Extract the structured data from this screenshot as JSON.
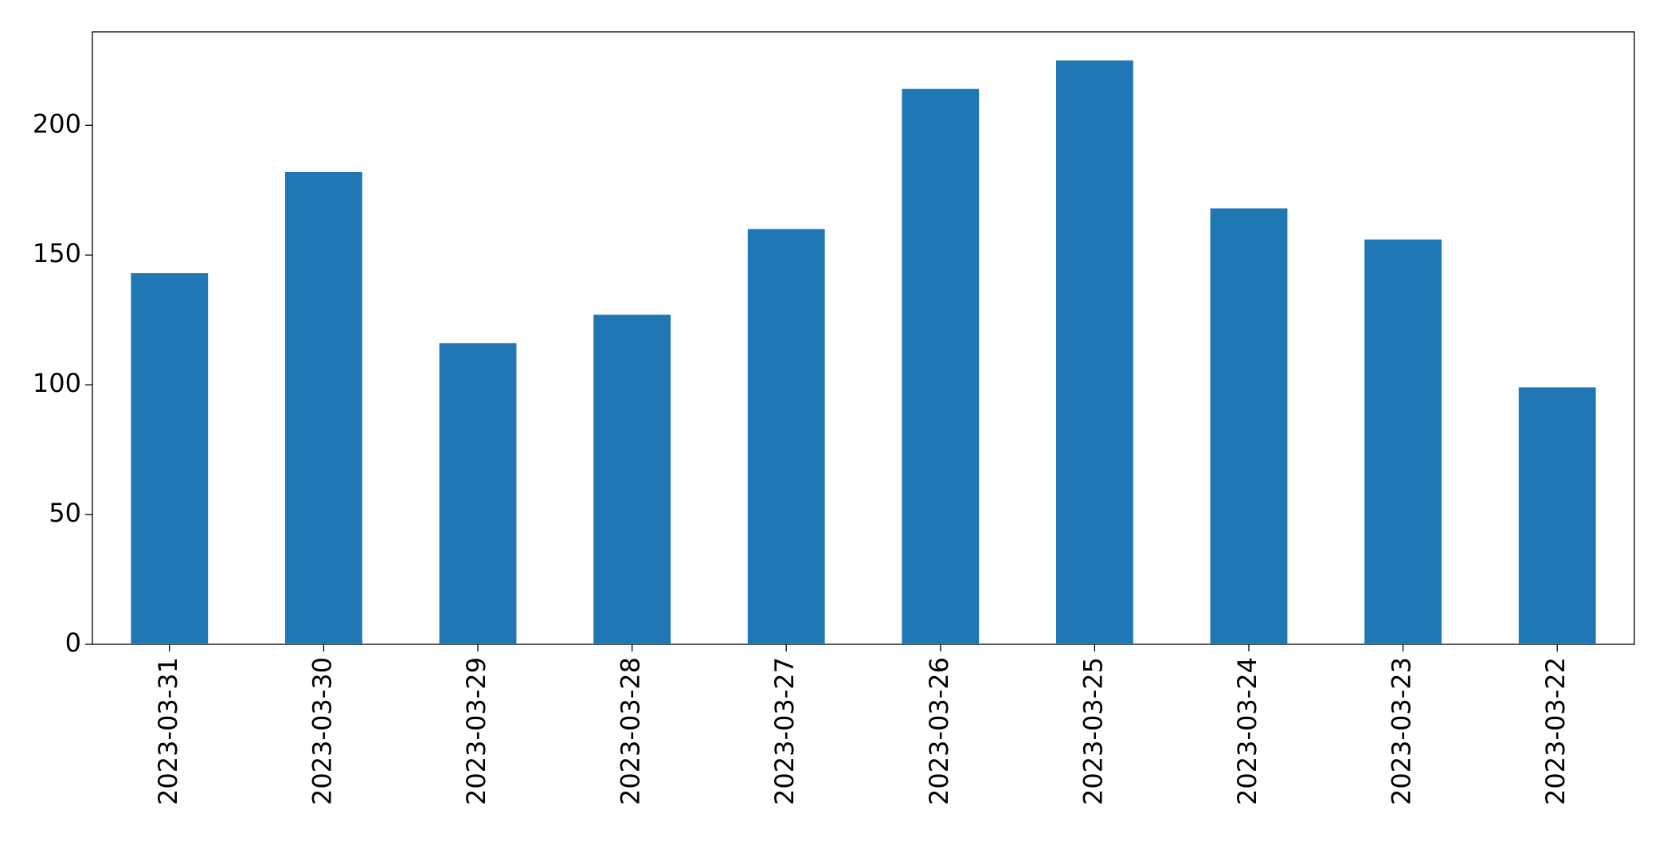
{
  "chart_data": {
    "type": "bar",
    "categories": [
      "2023-03-31",
      "2023-03-30",
      "2023-03-29",
      "2023-03-28",
      "2023-03-27",
      "2023-03-26",
      "2023-03-25",
      "2023-03-24",
      "2023-03-23",
      "2023-03-22"
    ],
    "values": [
      143,
      182,
      116,
      127,
      160,
      214,
      225,
      168,
      156,
      99
    ],
    "color": "#1f77b4",
    "ylim": [
      0,
      236
    ],
    "yticks": [
      0,
      50,
      100,
      150,
      200
    ],
    "grid": false
  }
}
